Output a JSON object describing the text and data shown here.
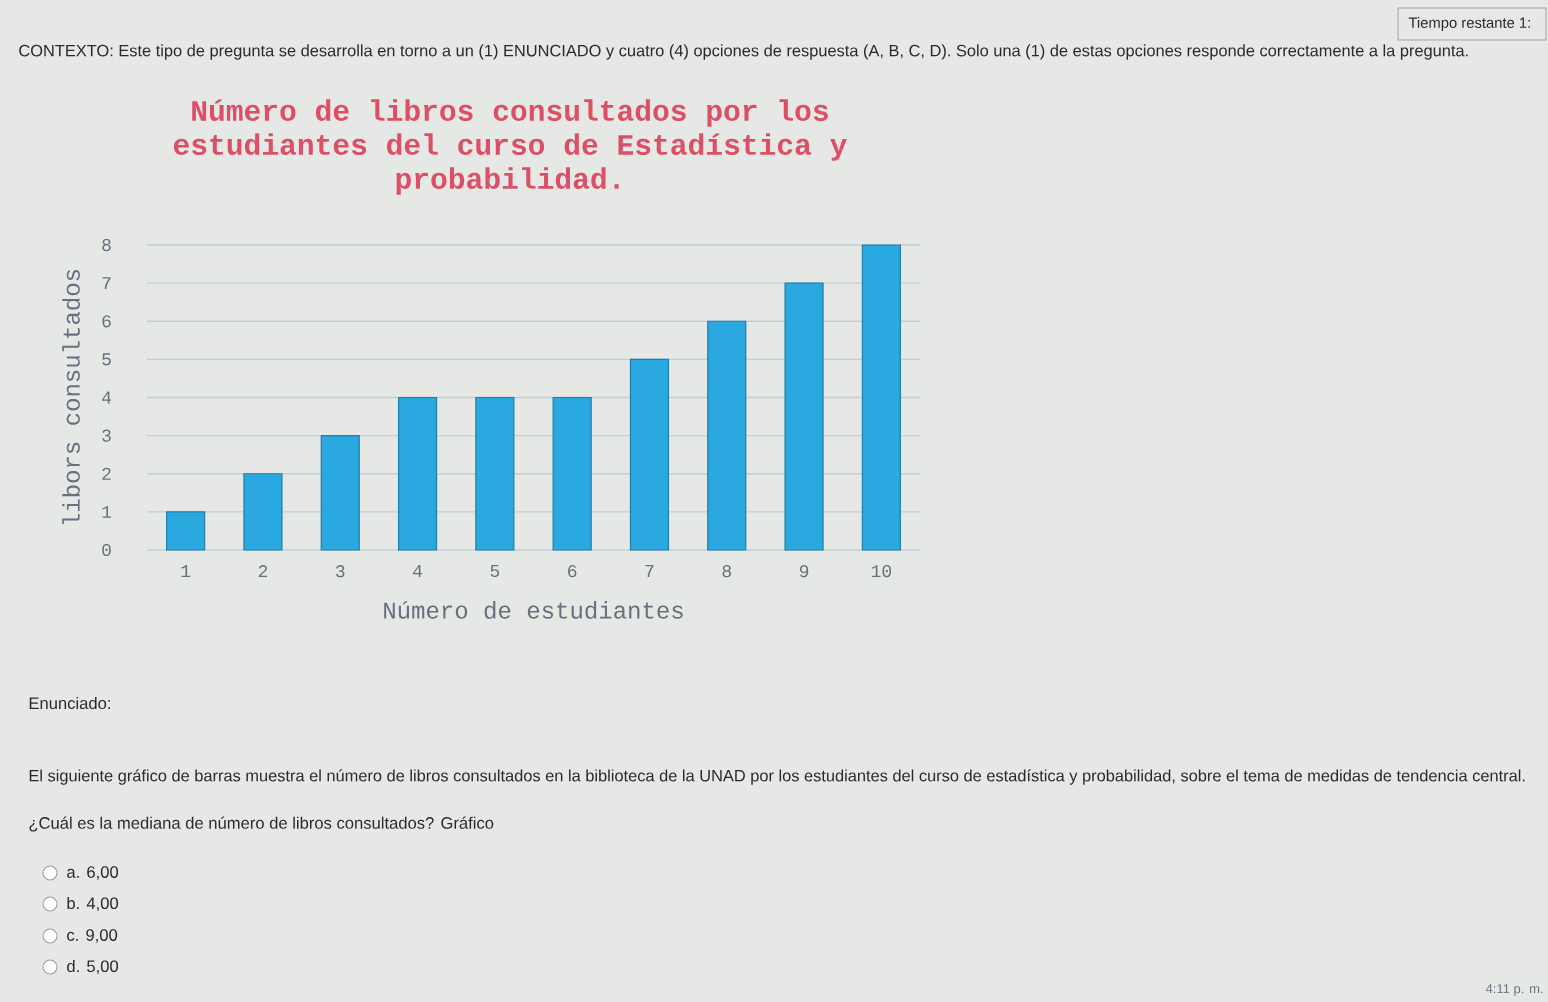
{
  "chart_data": {
    "type": "bar",
    "title": "Número de libros consultados por los estudiantes del curso de Estadística y probabilidad.",
    "xlabel": "Número de estudiantes",
    "ylabel": "libors consultados",
    "categories": [
      "1",
      "2",
      "3",
      "4",
      "5",
      "6",
      "7",
      "8",
      "9",
      "10"
    ],
    "values": [
      1,
      2,
      3,
      4,
      4,
      4,
      5,
      6,
      7,
      8
    ],
    "color": "#2aa8e0",
    "ylim": [
      0,
      8
    ],
    "yticks": [
      0,
      1,
      2,
      3,
      4,
      5,
      6,
      7,
      8
    ],
    "grid": "y",
    "annotations": [
      "CONTEXTO: Este tipo de pregunta se desarrolla en torno a un (1) ENUNCIADO y cuatro (4) opciones de respuesta (A, B, C, D). Solo una (1) de estas opciones responde correctamente a la pregunta.",
      "Tiempo restante 1:",
      "Enunciado:",
      "El siguiente gráfico de barras muestra el número de libros consultados en la biblioteca de la UNAD por los estudiantes del curso de estadística y probabilidad, sobre el tema de medidas de tendencia central.",
      "¿Cuál es la mediana de número de libros consultados? Gráfico",
      "a.   6,00",
      "b.   4,00",
      "c.   9,00",
      "d.   5,00",
      "4:11 p. m."
    ]
  }
}
